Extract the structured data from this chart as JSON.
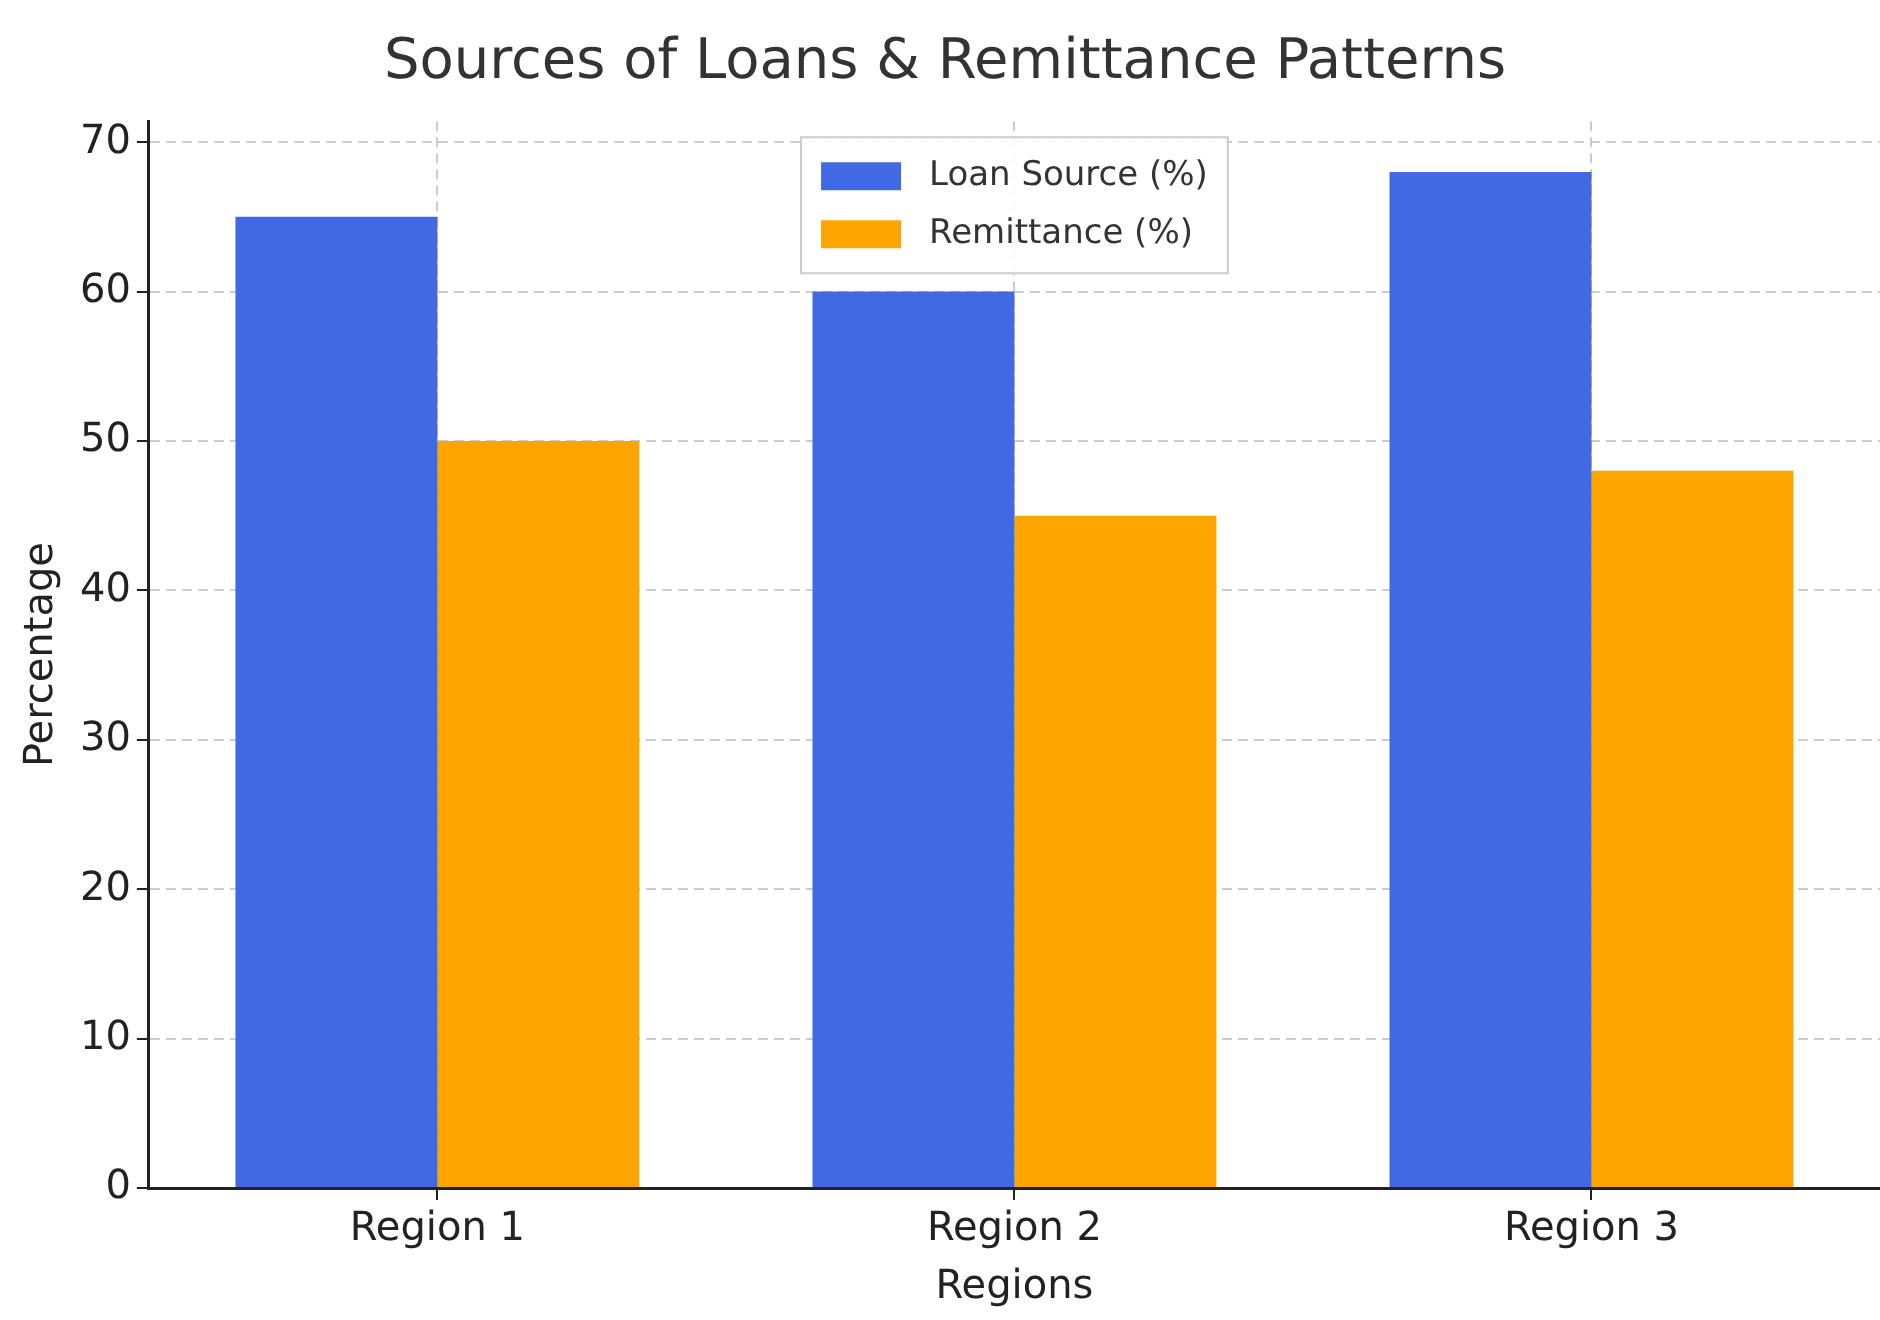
{
  "chart_data": {
    "type": "bar",
    "title": "Sources of Loans & Remittance Patterns",
    "xlabel": "Regions",
    "ylabel": "Percentage",
    "categories": [
      "Region 1",
      "Region 2",
      "Region 3"
    ],
    "series": [
      {
        "name": "Loan Source (%)",
        "color": "#4169e1",
        "values": [
          65,
          60,
          68
        ]
      },
      {
        "name": "Remittance (%)",
        "color": "#ffa500",
        "values": [
          50,
          45,
          48
        ]
      }
    ],
    "ylim": [
      0,
      71.4
    ],
    "yticks": [
      0,
      10,
      20,
      30,
      40,
      50,
      60,
      70
    ],
    "grid": true,
    "legend": "top"
  }
}
